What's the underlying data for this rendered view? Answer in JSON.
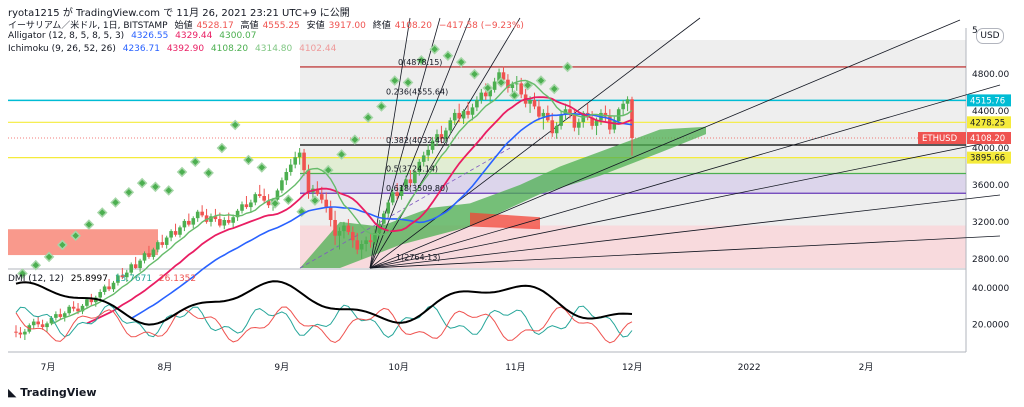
{
  "header": {
    "publisher": "ryota1215 が TradingView.com で 11月 26, 2021 23:21 UTC+9 に公開",
    "symbol": "イーサリアム／米ドル, 1日, BITSTAMP",
    "open_label": "始値",
    "open": "4528.17",
    "high_label": "高値",
    "high": "4555.25",
    "low_label": "安値",
    "low": "3917.00",
    "close_label": "終値",
    "close": "4108.20",
    "change": "−417.58 (−9.23%)"
  },
  "legend": {
    "alligator": {
      "label": "Alligator (12, 8, 5, 8, 5, 3)",
      "values": [
        "4326.55",
        "4329.44",
        "4300.07"
      ]
    },
    "ichimoku": {
      "label": "Ichimoku (9, 26, 52, 26)",
      "values": [
        "4236.71",
        "4392.90",
        "4108.20",
        "4314.80",
        "4102.44"
      ]
    },
    "dmi": {
      "label": "DMI (12, 12)",
      "values": [
        "25.8997",
        "13.7671",
        "26.1352"
      ]
    }
  },
  "currency_button": "USD",
  "brand": "TradingView",
  "colors": {
    "ema_blue": "#2962ff",
    "ema_red": "#e91e63",
    "cloud_green": "#4caf50",
    "cloud_red": "#f44336",
    "adx_black": "#000000",
    "di_plus": "#26a69a",
    "di_minus": "#ef5350",
    "cyan": "#00bcd4",
    "yellow": "#f5eb3b"
  },
  "chart_data": {
    "type": "candlestick",
    "price_axis": {
      "ticks": [
        2800,
        3200,
        3600,
        4000,
        4400,
        4800
      ],
      "tick_labels": [
        "2800.00",
        "3200.00",
        "3600.00",
        "4000.00",
        "4400.00",
        "4800.00"
      ],
      "top_label": "5"
    },
    "price_range": [
      2700,
      5300
    ],
    "time_axis": {
      "labels": [
        "7月",
        "8月",
        "9月",
        "10月",
        "11月",
        "12月",
        "2022",
        "2月"
      ]
    },
    "price_tags": [
      {
        "label": "4515.76",
        "value": 4515.76,
        "color": "#00bcd4"
      },
      {
        "label": "4278.25",
        "value": 4278.25,
        "color": "#f5eb3b"
      },
      {
        "symbol": "ETHUSD",
        "label": "4108.20",
        "value": 4108.2,
        "color": "#ef5350"
      },
      {
        "label": "3895.66",
        "value": 3895.66,
        "color": "#f5eb3b"
      }
    ],
    "horizontal_levels": [
      {
        "value": 4878.15,
        "color": "#b71c1c"
      },
      {
        "value": 4515.76,
        "color": "#00bcd4"
      },
      {
        "value": 4278.25,
        "color": "#f5eb3b"
      },
      {
        "value": 4032.4,
        "color": "#000000"
      },
      {
        "value": 3895.66,
        "color": "#f5eb3b"
      },
      {
        "value": 3724.14,
        "color": "#4caf50"
      },
      {
        "value": 3509.8,
        "color": "#673ab7"
      }
    ],
    "fib_labels": [
      {
        "text": "0(4878.15)",
        "value": 4878.15
      },
      {
        "text": "0.236(4555.64)",
        "value": 4555.64
      },
      {
        "text": "0.382(4032.40)",
        "value": 4032.4
      },
      {
        "text": "0.5(3724.14)",
        "value": 3724.14
      },
      {
        "text": "0.618(3509.80)",
        "value": 3509.8
      },
      {
        "text": "1(2764.13)",
        "value": 2764.13
      }
    ],
    "dmi_axis": {
      "ticks": [
        20,
        40
      ],
      "tick_labels": [
        "20.0000",
        "40.0000"
      ],
      "range": [
        5,
        50
      ]
    },
    "candles": [
      [
        2010,
        2080,
        1950,
        2000
      ],
      [
        2000,
        2060,
        1940,
        1980
      ],
      [
        1980,
        2040,
        1920,
        2010
      ],
      [
        2010,
        2100,
        1990,
        2080
      ],
      [
        2080,
        2150,
        2040,
        2120
      ],
      [
        2120,
        2180,
        2060,
        2090
      ],
      [
        2090,
        2140,
        2030,
        2060
      ],
      [
        2060,
        2120,
        2010,
        2100
      ],
      [
        2100,
        2180,
        2080,
        2160
      ],
      [
        2160,
        2230,
        2130,
        2200
      ],
      [
        2200,
        2260,
        2140,
        2170
      ],
      [
        2170,
        2230,
        2120,
        2210
      ],
      [
        2210,
        2300,
        2190,
        2280
      ],
      [
        2280,
        2340,
        2230,
        2260
      ],
      [
        2260,
        2320,
        2200,
        2230
      ],
      [
        2230,
        2310,
        2200,
        2290
      ],
      [
        2290,
        2380,
        2270,
        2360
      ],
      [
        2360,
        2420,
        2300,
        2330
      ],
      [
        2330,
        2400,
        2280,
        2380
      ],
      [
        2380,
        2470,
        2350,
        2440
      ],
      [
        2440,
        2520,
        2410,
        2500
      ],
      [
        2500,
        2580,
        2450,
        2470
      ],
      [
        2470,
        2560,
        2440,
        2540
      ],
      [
        2540,
        2640,
        2510,
        2620
      ],
      [
        2620,
        2700,
        2580,
        2600
      ],
      [
        2600,
        2680,
        2550,
        2650
      ],
      [
        2650,
        2760,
        2620,
        2740
      ],
      [
        2740,
        2820,
        2690,
        2700
      ],
      [
        2700,
        2800,
        2660,
        2780
      ],
      [
        2780,
        2880,
        2750,
        2860
      ],
      [
        2860,
        2940,
        2800,
        2820
      ],
      [
        2820,
        2920,
        2790,
        2900
      ],
      [
        2900,
        3000,
        2870,
        2980
      ],
      [
        2980,
        3060,
        2920,
        2950
      ],
      [
        2950,
        3050,
        2910,
        3030
      ],
      [
        3030,
        3120,
        2990,
        3100
      ],
      [
        3100,
        3180,
        3040,
        3060
      ],
      [
        3060,
        3160,
        3030,
        3140
      ],
      [
        3140,
        3230,
        3100,
        3210
      ],
      [
        3210,
        3290,
        3150,
        3170
      ],
      [
        3170,
        3260,
        3130,
        3240
      ],
      [
        3240,
        3330,
        3200,
        3310
      ],
      [
        3310,
        3380,
        3250,
        3270
      ],
      [
        3270,
        3340,
        3180,
        3200
      ],
      [
        3200,
        3290,
        3150,
        3260
      ],
      [
        3260,
        3340,
        3200,
        3230
      ],
      [
        3230,
        3300,
        3140,
        3160
      ],
      [
        3160,
        3250,
        3120,
        3220
      ],
      [
        3220,
        3300,
        3170,
        3190
      ],
      [
        3190,
        3280,
        3140,
        3250
      ],
      [
        3250,
        3340,
        3210,
        3320
      ],
      [
        3320,
        3420,
        3290,
        3390
      ],
      [
        3390,
        3480,
        3340,
        3360
      ],
      [
        3360,
        3440,
        3300,
        3410
      ],
      [
        3410,
        3520,
        3380,
        3500
      ],
      [
        3500,
        3600,
        3460,
        3480
      ],
      [
        3480,
        3560,
        3400,
        3430
      ],
      [
        3430,
        3500,
        3350,
        3380
      ],
      [
        3380,
        3460,
        3320,
        3440
      ],
      [
        3440,
        3560,
        3410,
        3540
      ],
      [
        3540,
        3680,
        3510,
        3650
      ],
      [
        3650,
        3780,
        3600,
        3740
      ],
      [
        3740,
        3880,
        3700,
        3820
      ],
      [
        3820,
        3960,
        3780,
        3900
      ],
      [
        3900,
        4000,
        3820,
        3950
      ],
      [
        3950,
        3990,
        3700,
        3760
      ],
      [
        3760,
        3820,
        3450,
        3520
      ],
      [
        3520,
        3600,
        3420,
        3560
      ],
      [
        3560,
        3640,
        3480,
        3500
      ],
      [
        3500,
        3580,
        3400,
        3440
      ],
      [
        3440,
        3520,
        3300,
        3360
      ],
      [
        3360,
        3430,
        3150,
        3220
      ],
      [
        3220,
        3320,
        2950,
        3050
      ],
      [
        3050,
        3140,
        2900,
        3100
      ],
      [
        3100,
        3200,
        3020,
        3160
      ],
      [
        3160,
        3230,
        3060,
        3090
      ],
      [
        3090,
        3150,
        2920,
        3000
      ],
      [
        3000,
        3080,
        2850,
        2900
      ],
      [
        2900,
        3000,
        2800,
        2960
      ],
      [
        2960,
        3040,
        2880,
        3000
      ],
      [
        3000,
        3080,
        2920,
        2980
      ],
      [
        2980,
        3120,
        2950,
        3080
      ],
      [
        3080,
        3220,
        3040,
        3180
      ],
      [
        3180,
        3320,
        3150,
        3290
      ],
      [
        3290,
        3440,
        3250,
        3410
      ],
      [
        3410,
        3560,
        3380,
        3520
      ],
      [
        3520,
        3620,
        3440,
        3480
      ],
      [
        3480,
        3600,
        3440,
        3580
      ],
      [
        3580,
        3700,
        3540,
        3660
      ],
      [
        3660,
        3760,
        3580,
        3620
      ],
      [
        3620,
        3760,
        3600,
        3740
      ],
      [
        3740,
        3880,
        3700,
        3850
      ],
      [
        3850,
        3960,
        3800,
        3920
      ],
      [
        3920,
        4040,
        3860,
        3980
      ],
      [
        3980,
        4120,
        3940,
        4080
      ],
      [
        4080,
        4200,
        4020,
        4150
      ],
      [
        4150,
        4240,
        4050,
        4100
      ],
      [
        4100,
        4220,
        4060,
        4190
      ],
      [
        4190,
        4330,
        4150,
        4300
      ],
      [
        4300,
        4420,
        4250,
        4380
      ],
      [
        4380,
        4480,
        4280,
        4320
      ],
      [
        4320,
        4420,
        4260,
        4400
      ],
      [
        4400,
        4500,
        4320,
        4360
      ],
      [
        4360,
        4480,
        4300,
        4440
      ],
      [
        4440,
        4560,
        4400,
        4520
      ],
      [
        4520,
        4640,
        4480,
        4600
      ],
      [
        4600,
        4700,
        4520,
        4560
      ],
      [
        4560,
        4660,
        4500,
        4630
      ],
      [
        4630,
        4760,
        4600,
        4720
      ],
      [
        4720,
        4860,
        4680,
        4820
      ],
      [
        4820,
        4880,
        4700,
        4740
      ],
      [
        4740,
        4800,
        4600,
        4650
      ],
      [
        4650,
        4720,
        4560,
        4690
      ],
      [
        4690,
        4780,
        4620,
        4700
      ],
      [
        4700,
        4760,
        4540,
        4580
      ],
      [
        4580,
        4640,
        4440,
        4480
      ],
      [
        4480,
        4560,
        4380,
        4520
      ],
      [
        4520,
        4600,
        4420,
        4450
      ],
      [
        4450,
        4520,
        4300,
        4340
      ],
      [
        4340,
        4420,
        4200,
        4380
      ],
      [
        4380,
        4460,
        4280,
        4300
      ],
      [
        4300,
        4380,
        4120,
        4160
      ],
      [
        4160,
        4280,
        4100,
        4240
      ],
      [
        4240,
        4400,
        4200,
        4360
      ],
      [
        4360,
        4480,
        4300,
        4420
      ],
      [
        4420,
        4520,
        4320,
        4360
      ],
      [
        4360,
        4420,
        4180,
        4220
      ],
      [
        4220,
        4320,
        4140,
        4280
      ],
      [
        4280,
        4400,
        4220,
        4380
      ],
      [
        4380,
        4480,
        4300,
        4330
      ],
      [
        4330,
        4400,
        4200,
        4240
      ],
      [
        4240,
        4330,
        4140,
        4300
      ],
      [
        4300,
        4420,
        4250,
        4380
      ],
      [
        4380,
        4460,
        4290,
        4340
      ],
      [
        4340,
        4420,
        4150,
        4200
      ],
      [
        4200,
        4340,
        4160,
        4290
      ],
      [
        4290,
        4440,
        4260,
        4420
      ],
      [
        4420,
        4520,
        4360,
        4480
      ],
      [
        4480,
        4560,
        4400,
        4528
      ],
      [
        4528,
        4555,
        3917,
        4108
      ]
    ]
  }
}
